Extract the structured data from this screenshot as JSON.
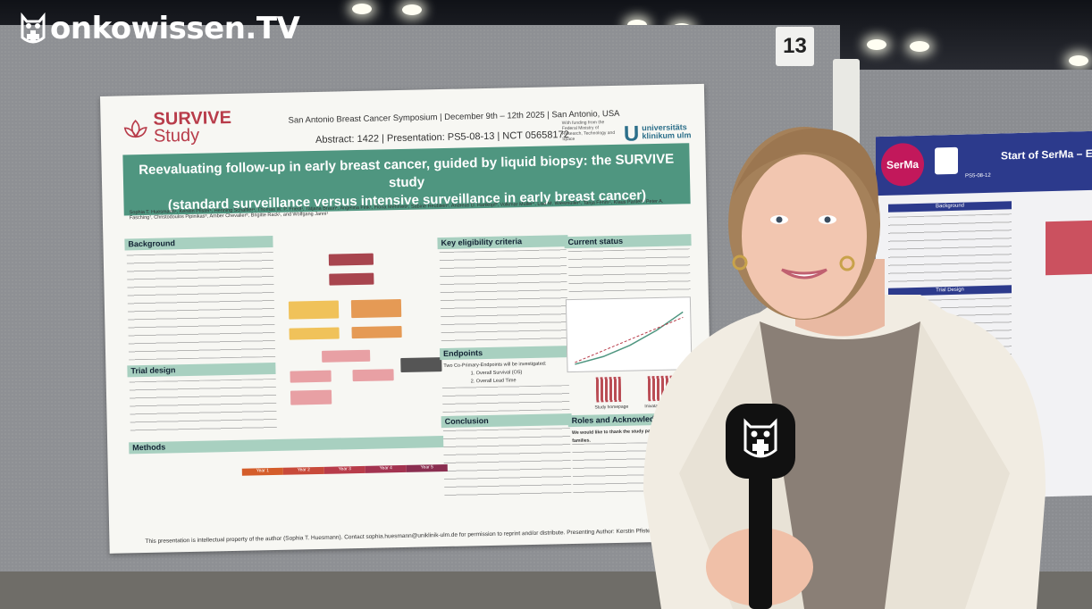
{
  "channel_logo": {
    "text": "onkowissen.TV",
    "icon": "owl-plus-icon"
  },
  "booth_number": "13",
  "poster": {
    "logo_top": "SURVIVE",
    "logo_bottom": "Study",
    "conference": "San Antonio Breast Cancer Symposium | December 9th – 12th 2025 | San Antonio, USA",
    "abstract_line": "Abstract: 1422 | Presentation: PS5-08-13 | NCT 05658172",
    "funder": "With funding from the Federal Ministry of Research, Technology and Space",
    "university": "universitäts klinikum ulm",
    "title_line1": "Reevaluating follow-up in early breast cancer, guided by liquid biopsy: the SURVIVE study",
    "title_line2": "(standard surveillance versus intensive surveillance in early breast cancer)",
    "authors": "Sophia T. Huesmann¹, Kerstin Pfister¹, Henning Schäffler¹, Thomas W. P. Friedl¹, Tatjana Braun¹, Angelina Fink¹, Fiona Mehmeti¹, Sabine Heublein², Andreas D. Hartkopf³, Volkmar Müller⁴, Lisa M. Wiesmüller¹, Tanja Fehm⁵, Klaus Pantel⁶, Peter A. Fasching⁷, Christodoulos Pipinikas⁸, Amber Chevalier⁸, Brigitte Rack¹, and Wolfgang Janni¹",
    "headings": {
      "background": "Background",
      "trial_design": "Trial design",
      "methods": "Methods",
      "eligibility": "Key eligibility criteria",
      "endpoints": "Endpoints",
      "conclusion": "Conclusion",
      "status": "Current status",
      "roles": "Roles and Acknowledgements"
    },
    "endpoint_items": [
      "Two Co-Primary-Endpoints will be investigated:",
      "1. Overall Survival (OS)",
      "2. Overall Lead Time"
    ],
    "qr_labels": [
      "Study homepage",
      "Inivata(R) assay"
    ],
    "acknowledgement": "We would like to thank the study participants and their families.",
    "footer": "This presentation is intellectual property of the author (Sophia T. Huesmann). Contact sophia.huesmann@uniklinik-ulm.de for permission to reprint and/or distribute. Presenting Author: Kerstin Pfister (kerstin.pfister@uniklinik-ulm.de)",
    "timeline_labels": [
      "Year 1",
      "Year 2",
      "Year 3",
      "Year 4",
      "Year 5"
    ],
    "colors": {
      "banner": "#4f9680",
      "heading": "#a8d0c0",
      "logo": "#b83c4a"
    }
  },
  "neighbor_poster": {
    "badge": "SerMa",
    "title": "Start of SerMa – EUBR",
    "code": "PS5-08-12",
    "section1": "Background",
    "section2": "Trial Design",
    "colors": {
      "header": "#2c3a8c",
      "badge": "#c2185b"
    }
  },
  "microphone": {
    "brand_icon": "owl-plus-icon",
    "color": "#111111"
  }
}
